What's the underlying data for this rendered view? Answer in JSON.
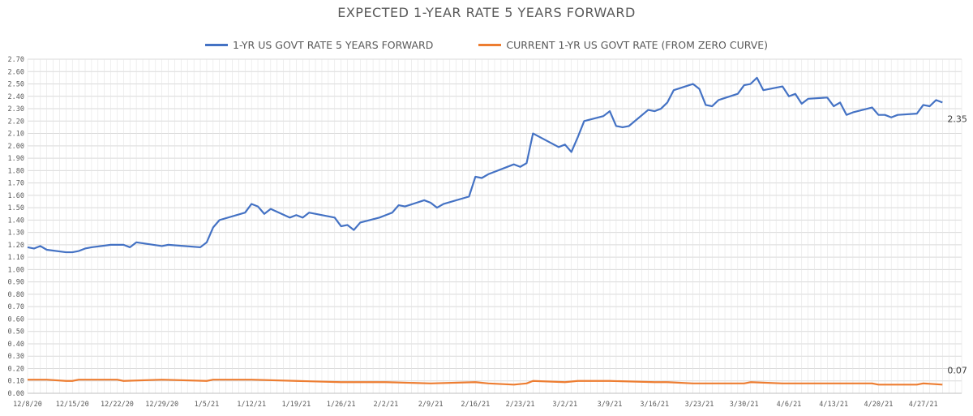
{
  "chart_data": {
    "type": "line",
    "title": "EXPECTED 1-YEAR RATE 5 YEARS FORWARD",
    "xlabel": "",
    "ylabel": "",
    "ylim": [
      0,
      2.7
    ],
    "ytick_step": 0.1,
    "y_tick_labels": [
      "0.00",
      "0.10",
      "0.20",
      "0.30",
      "0.40",
      "0.50",
      "0.60",
      "0.70",
      "0.80",
      "0.90",
      "1.00",
      "1.10",
      "1.20",
      "1.30",
      "1.40",
      "1.50",
      "1.60",
      "1.70",
      "1.80",
      "1.90",
      "2.00",
      "2.10",
      "2.20",
      "2.30",
      "2.40",
      "2.50",
      "2.60",
      "2.70"
    ],
    "x_tick_labels": [
      "12/8/20",
      "12/15/20",
      "12/22/20",
      "12/29/20",
      "1/5/21",
      "1/12/21",
      "1/19/21",
      "1/26/21",
      "2/2/21",
      "2/9/21",
      "2/16/21",
      "2/23/21",
      "3/2/21",
      "3/9/21",
      "3/16/21",
      "3/23/21",
      "3/30/21",
      "4/6/21",
      "4/13/21",
      "4/20/21",
      "4/27/21"
    ],
    "x_start_day": 0,
    "x_end_day": 146,
    "grid": true,
    "legend_position": "top",
    "series": [
      {
        "name": "1-YR US GOVT RATE 5 YEARS FORWARD",
        "color": "#4472C4",
        "end_label": "2.35",
        "points": [
          [
            0,
            1.18
          ],
          [
            1,
            1.17
          ],
          [
            2,
            1.19
          ],
          [
            3,
            1.16
          ],
          [
            6,
            1.14
          ],
          [
            7,
            1.14
          ],
          [
            8,
            1.15
          ],
          [
            9,
            1.17
          ],
          [
            10,
            1.18
          ],
          [
            13,
            1.2
          ],
          [
            14,
            1.2
          ],
          [
            15,
            1.2
          ],
          [
            16,
            1.18
          ],
          [
            17,
            1.22
          ],
          [
            21,
            1.19
          ],
          [
            22,
            1.2
          ],
          [
            27,
            1.18
          ],
          [
            28,
            1.22
          ],
          [
            29,
            1.34
          ],
          [
            30,
            1.4
          ],
          [
            34,
            1.46
          ],
          [
            35,
            1.53
          ],
          [
            36,
            1.51
          ],
          [
            37,
            1.45
          ],
          [
            38,
            1.49
          ],
          [
            41,
            1.42
          ],
          [
            42,
            1.44
          ],
          [
            43,
            1.42
          ],
          [
            44,
            1.46
          ],
          [
            48,
            1.42
          ],
          [
            49,
            1.35
          ],
          [
            50,
            1.36
          ],
          [
            51,
            1.32
          ],
          [
            52,
            1.38
          ],
          [
            55,
            1.42
          ],
          [
            56,
            1.44
          ],
          [
            57,
            1.46
          ],
          [
            58,
            1.52
          ],
          [
            59,
            1.51
          ],
          [
            62,
            1.56
          ],
          [
            63,
            1.54
          ],
          [
            64,
            1.5
          ],
          [
            65,
            1.53
          ],
          [
            69,
            1.59
          ],
          [
            70,
            1.75
          ],
          [
            71,
            1.74
          ],
          [
            72,
            1.77
          ],
          [
            76,
            1.85
          ],
          [
            77,
            1.83
          ],
          [
            78,
            1.86
          ],
          [
            79,
            2.1
          ],
          [
            83,
            1.99
          ],
          [
            84,
            2.01
          ],
          [
            85,
            1.95
          ],
          [
            86,
            2.07
          ],
          [
            87,
            2.2
          ],
          [
            90,
            2.24
          ],
          [
            91,
            2.28
          ],
          [
            92,
            2.16
          ],
          [
            93,
            2.15
          ],
          [
            94,
            2.16
          ],
          [
            97,
            2.29
          ],
          [
            98,
            2.28
          ],
          [
            99,
            2.3
          ],
          [
            100,
            2.35
          ],
          [
            101,
            2.45
          ],
          [
            104,
            2.5
          ],
          [
            105,
            2.46
          ],
          [
            106,
            2.33
          ],
          [
            107,
            2.32
          ],
          [
            108,
            2.37
          ],
          [
            111,
            2.42
          ],
          [
            112,
            2.49
          ],
          [
            113,
            2.5
          ],
          [
            114,
            2.55
          ],
          [
            115,
            2.45
          ],
          [
            118,
            2.48
          ],
          [
            119,
            2.4
          ],
          [
            120,
            2.42
          ],
          [
            121,
            2.34
          ],
          [
            122,
            2.38
          ],
          [
            125,
            2.39
          ],
          [
            126,
            2.32
          ],
          [
            127,
            2.35
          ],
          [
            128,
            2.25
          ],
          [
            129,
            2.27
          ],
          [
            132,
            2.31
          ],
          [
            133,
            2.25
          ],
          [
            134,
            2.25
          ],
          [
            135,
            2.23
          ],
          [
            136,
            2.25
          ],
          [
            139,
            2.26
          ],
          [
            140,
            2.33
          ],
          [
            141,
            2.32
          ],
          [
            142,
            2.37
          ],
          [
            143,
            2.35
          ]
        ]
      },
      {
        "name": "CURRENT 1-YR US GOVT RATE (FROM ZERO CURVE)",
        "color": "#ED7D31",
        "end_label": "0.07",
        "points": [
          [
            0,
            0.11
          ],
          [
            3,
            0.11
          ],
          [
            6,
            0.1
          ],
          [
            7,
            0.1
          ],
          [
            8,
            0.11
          ],
          [
            14,
            0.11
          ],
          [
            15,
            0.1
          ],
          [
            21,
            0.11
          ],
          [
            28,
            0.1
          ],
          [
            29,
            0.11
          ],
          [
            35,
            0.11
          ],
          [
            42,
            0.1
          ],
          [
            49,
            0.09
          ],
          [
            50,
            0.09
          ],
          [
            51,
            0.09
          ],
          [
            56,
            0.09
          ],
          [
            63,
            0.08
          ],
          [
            70,
            0.09
          ],
          [
            72,
            0.08
          ],
          [
            76,
            0.07
          ],
          [
            78,
            0.08
          ],
          [
            79,
            0.1
          ],
          [
            84,
            0.09
          ],
          [
            86,
            0.1
          ],
          [
            91,
            0.1
          ],
          [
            98,
            0.09
          ],
          [
            100,
            0.09
          ],
          [
            104,
            0.08
          ],
          [
            111,
            0.08
          ],
          [
            112,
            0.08
          ],
          [
            113,
            0.09
          ],
          [
            118,
            0.08
          ],
          [
            119,
            0.08
          ],
          [
            120,
            0.08
          ],
          [
            125,
            0.08
          ],
          [
            126,
            0.08
          ],
          [
            132,
            0.08
          ],
          [
            133,
            0.07
          ],
          [
            139,
            0.07
          ],
          [
            140,
            0.08
          ],
          [
            143,
            0.07
          ]
        ]
      }
    ]
  }
}
